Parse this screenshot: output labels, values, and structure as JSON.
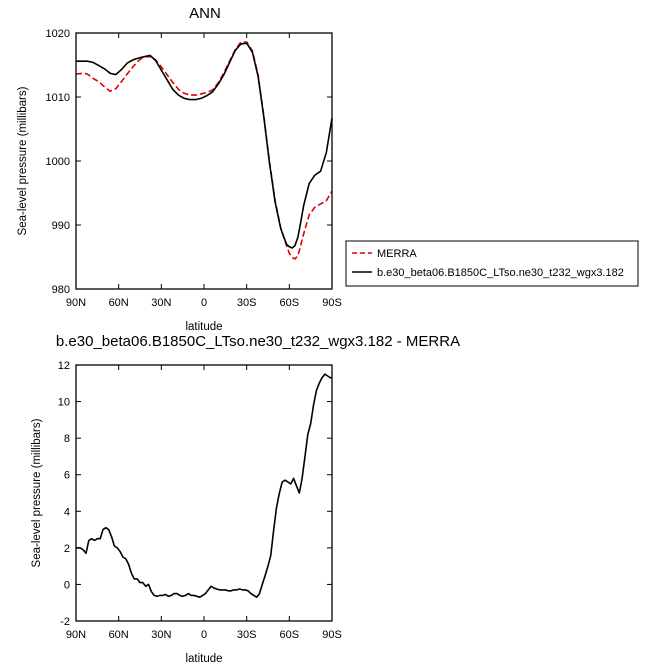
{
  "chart_data": [
    {
      "type": "line",
      "title": "ANN",
      "xlabel": "latitude",
      "ylabel": "Sea-level pressure (millibars)",
      "xlim": [
        90,
        -90
      ],
      "ylim": [
        980,
        1020
      ],
      "x_ticks": [
        90,
        60,
        30,
        0,
        -30,
        -60,
        -90
      ],
      "x_tick_labels": [
        "90N",
        "60N",
        "30N",
        "0",
        "30S",
        "60S",
        "90S"
      ],
      "y_ticks": [
        980,
        990,
        1000,
        1010,
        1020
      ],
      "y_tick_labels": [
        "980",
        "990",
        "1000",
        "1010",
        "1020"
      ],
      "legend_position": "right, outside plot",
      "series": [
        {
          "name": "MERRA",
          "color": "#e00000",
          "dash": true,
          "x": [
            90,
            85,
            82,
            78,
            74,
            70,
            66,
            62,
            58,
            54,
            50,
            46,
            42,
            38,
            34,
            30,
            26,
            22,
            18,
            14,
            10,
            6,
            2,
            -2,
            -6,
            -10,
            -14,
            -18,
            -22,
            -26,
            -30,
            -34,
            -38,
            -42,
            -46,
            -50,
            -54,
            -58,
            -60,
            -62,
            -64,
            -66,
            -68,
            -70,
            -74,
            -78,
            -82,
            -86,
            -90
          ],
          "values": [
            1013.6,
            1013.7,
            1013.6,
            1012.9,
            1012.4,
            1011.6,
            1010.9,
            1011.3,
            1012.4,
            1013.6,
            1014.7,
            1015.7,
            1016.3,
            1016.3,
            1015.8,
            1014.7,
            1013.5,
            1012.3,
            1011.2,
            1010.6,
            1010.3,
            1010.3,
            1010.5,
            1010.7,
            1011.1,
            1012.2,
            1013.8,
            1015.6,
            1017.4,
            1018.6,
            1018.6,
            1017.2,
            1013.5,
            1007.2,
            1000.0,
            993.8,
            989.5,
            986.8,
            985.6,
            984.9,
            984.7,
            985.2,
            986.8,
            988.6,
            991.6,
            992.8,
            993.3,
            993.8,
            995.3
          ]
        },
        {
          "name": "b.e30_beta06.B1850C_LTso.ne30_t232_wgx3.182",
          "color": "#000000",
          "dash": false,
          "x": [
            90,
            85,
            82,
            78,
            74,
            70,
            66,
            62,
            58,
            54,
            50,
            46,
            42,
            38,
            34,
            30,
            26,
            22,
            18,
            14,
            10,
            6,
            2,
            -2,
            -6,
            -10,
            -14,
            -18,
            -22,
            -26,
            -30,
            -34,
            -38,
            -42,
            -46,
            -50,
            -54,
            -58,
            -60,
            -62,
            -64,
            -66,
            -68,
            -70,
            -74,
            -78,
            -82,
            -86,
            -90
          ],
          "values": [
            1015.6,
            1015.6,
            1015.6,
            1015.4,
            1014.9,
            1014.4,
            1013.7,
            1013.5,
            1014.3,
            1015.3,
            1015.8,
            1016.1,
            1016.3,
            1016.5,
            1015.7,
            1014.2,
            1012.7,
            1011.2,
            1010.3,
            1009.8,
            1009.6,
            1009.6,
            1009.8,
            1010.2,
            1010.8,
            1012.0,
            1013.5,
            1015.4,
            1017.3,
            1018.3,
            1018.4,
            1017.0,
            1013.3,
            1007.0,
            999.8,
            993.6,
            989.4,
            987.0,
            986.6,
            986.4,
            986.8,
            988.1,
            990.4,
            993.0,
            996.5,
            997.8,
            998.4,
            1001.3,
            1006.7
          ]
        }
      ]
    },
    {
      "type": "line",
      "title": "b.e30_beta06.B1850C_LTso.ne30_t232_wgx3.182 - MERRA",
      "xlabel": "latitude",
      "ylabel": "Sea-level pressure (millibars)",
      "xlim": [
        90,
        -90
      ],
      "ylim": [
        -2,
        12
      ],
      "x_ticks": [
        90,
        60,
        30,
        0,
        -30,
        -60,
        -90
      ],
      "x_tick_labels": [
        "90N",
        "60N",
        "30N",
        "0",
        "30S",
        "60S",
        "90S"
      ],
      "y_ticks": [
        -2,
        0,
        2,
        4,
        6,
        8,
        10,
        12
      ],
      "y_tick_labels": [
        "-2",
        "0",
        "2",
        "4",
        "6",
        "8",
        "10",
        "12"
      ],
      "series": [
        {
          "color": "#000000",
          "dash": false,
          "x": [
            90,
            87,
            85,
            83,
            81,
            79,
            77,
            75,
            73,
            71,
            69,
            67,
            65,
            63,
            61,
            59,
            57,
            55,
            53,
            51,
            49,
            47,
            45,
            43,
            41,
            39,
            37,
            35,
            33,
            31,
            29,
            27,
            25,
            23,
            21,
            19,
            17,
            15,
            13,
            11,
            9,
            7,
            5,
            3,
            1,
            -1,
            -3,
            -5,
            -7,
            -9,
            -11,
            -13,
            -15,
            -17,
            -19,
            -21,
            -23,
            -25,
            -27,
            -29,
            -31,
            -33,
            -35,
            -37,
            -39,
            -41,
            -43,
            -45,
            -47,
            -49,
            -51,
            -53,
            -55,
            -57,
            -59,
            -61,
            -63,
            -65,
            -67,
            -69,
            -71,
            -73,
            -75,
            -77,
            -79,
            -81,
            -83,
            -85,
            -87,
            -89,
            -90
          ],
          "values": [
            2.0,
            2.0,
            1.9,
            1.7,
            2.4,
            2.5,
            2.4,
            2.5,
            2.5,
            3.0,
            3.1,
            3.0,
            2.6,
            2.1,
            2.0,
            1.8,
            1.5,
            1.4,
            1.1,
            0.6,
            0.3,
            0.3,
            0.1,
            0.1,
            -0.1,
            0.0,
            -0.4,
            -0.6,
            -0.65,
            -0.6,
            -0.6,
            -0.55,
            -0.65,
            -0.6,
            -0.5,
            -0.5,
            -0.6,
            -0.65,
            -0.6,
            -0.5,
            -0.6,
            -0.6,
            -0.65,
            -0.7,
            -0.6,
            -0.5,
            -0.3,
            -0.1,
            -0.2,
            -0.25,
            -0.3,
            -0.3,
            -0.3,
            -0.35,
            -0.35,
            -0.3,
            -0.3,
            -0.25,
            -0.3,
            -0.3,
            -0.35,
            -0.5,
            -0.6,
            -0.7,
            -0.5,
            0.0,
            0.5,
            1.0,
            1.6,
            3.0,
            4.2,
            5.0,
            5.6,
            5.7,
            5.6,
            5.5,
            5.8,
            5.4,
            5.0,
            5.8,
            7.0,
            8.2,
            8.8,
            9.8,
            10.6,
            11.0,
            11.3,
            11.5,
            11.4,
            11.3,
            11.3
          ]
        }
      ]
    }
  ]
}
